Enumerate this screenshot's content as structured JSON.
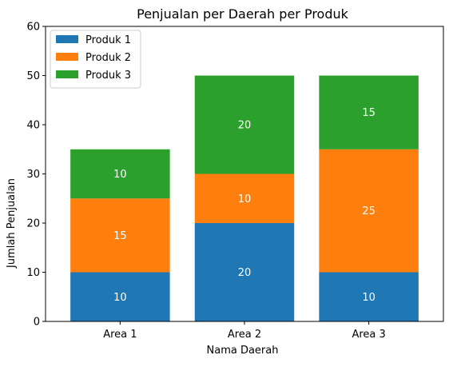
{
  "chart_data": {
    "type": "bar",
    "stacked": true,
    "title": "Penjualan per Daerah per Produk",
    "xlabel": "Nama Daerah",
    "ylabel": "Jumlah Penjualan",
    "categories": [
      "Area 1",
      "Area 2",
      "Area 3"
    ],
    "series": [
      {
        "name": "Produk 1",
        "color": "#1f77b4",
        "values": [
          10,
          20,
          10
        ]
      },
      {
        "name": "Produk 2",
        "color": "#ff7f0e",
        "values": [
          15,
          10,
          25
        ]
      },
      {
        "name": "Produk 3",
        "color": "#2ca02c",
        "values": [
          10,
          20,
          15
        ]
      }
    ],
    "ylim": [
      0,
      60
    ],
    "yticks": [
      0,
      10,
      20,
      30,
      40,
      50,
      60
    ],
    "grid": false,
    "legend_position": "top-left",
    "data_label_color": "#ffffff"
  }
}
